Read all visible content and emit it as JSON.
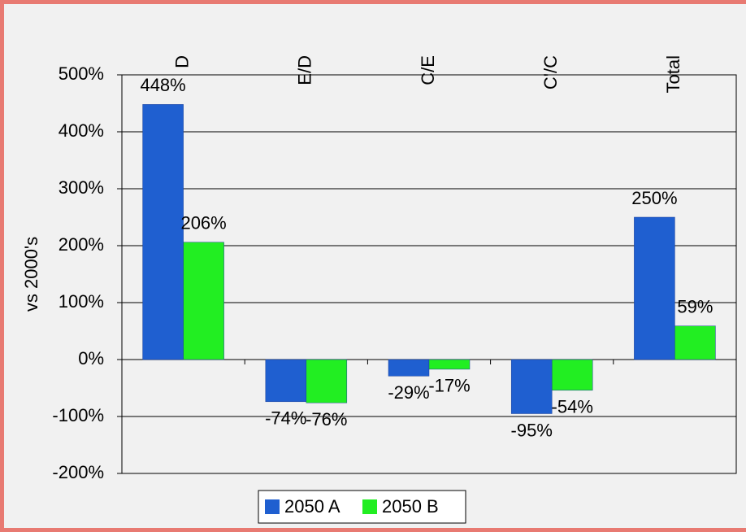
{
  "chart_data": {
    "type": "bar",
    "y_label": "vs 2000's",
    "categories": [
      "D",
      "E/D",
      "C/E",
      "C'/C",
      "Total"
    ],
    "series": [
      {
        "name": "2050 A",
        "color": "#1f5fd0",
        "values": [
          448,
          -74,
          -29,
          -95,
          250
        ],
        "value_labels": [
          "448%",
          "-74%",
          "-29%",
          "-95%",
          "250%"
        ]
      },
      {
        "name": "2050 B",
        "color": "#22ee22",
        "values": [
          206,
          -76,
          -17,
          -54,
          59
        ],
        "value_labels": [
          "206%",
          "-76%",
          "-17%",
          "-54%",
          "59%"
        ]
      }
    ],
    "ylim": [
      -200,
      500
    ],
    "yticks": [
      {
        "value": -200,
        "label": "-200%"
      },
      {
        "value": -100,
        "label": "-100%"
      },
      {
        "value": 0,
        "label": "0%"
      },
      {
        "value": 100,
        "label": "100%"
      },
      {
        "value": 200,
        "label": "200%"
      },
      {
        "value": 300,
        "label": "300%"
      },
      {
        "value": 400,
        "label": "400%"
      },
      {
        "value": 500,
        "label": "500%"
      }
    ],
    "grid": true
  }
}
